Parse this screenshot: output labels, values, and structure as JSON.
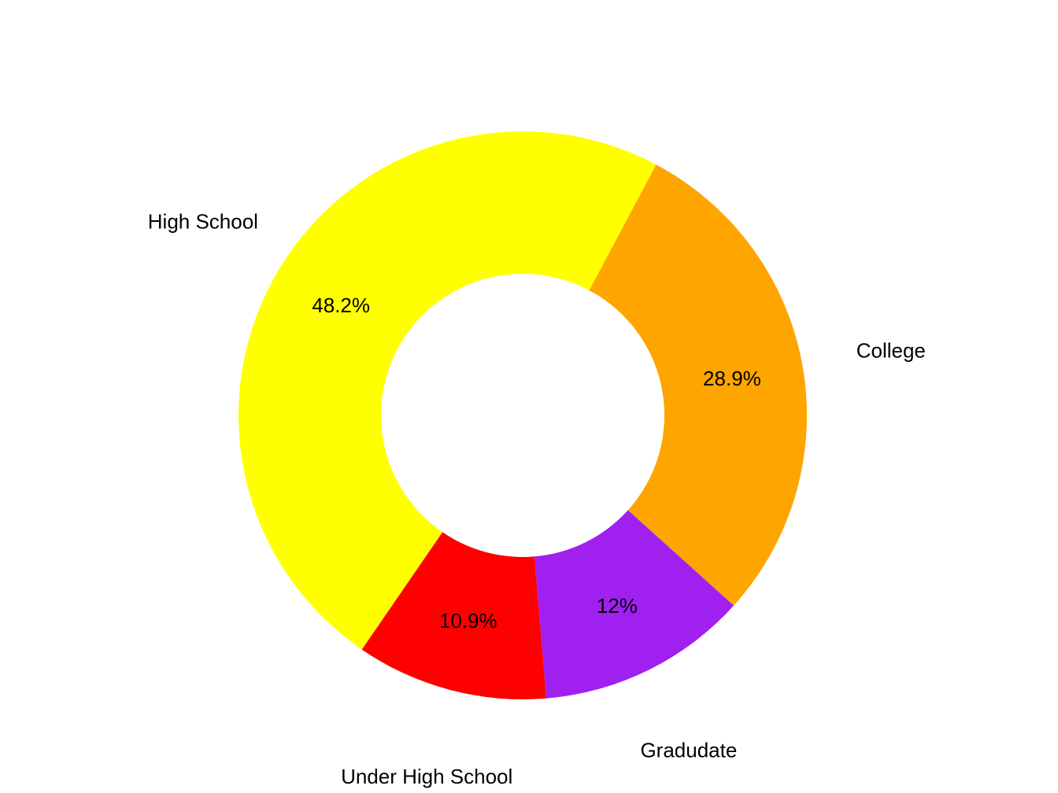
{
  "chart_data": {
    "type": "pie",
    "style": "donut",
    "title": "",
    "slices": [
      {
        "label": "College",
        "value": 28.9,
        "value_label": "28.9%",
        "color": "#FFA500"
      },
      {
        "label": "Gradudate",
        "value": 12.0,
        "value_label": "12%",
        "color": "#A020F0"
      },
      {
        "label": "Under High School",
        "value": 10.9,
        "value_label": "10.9%",
        "color": "#FF0000"
      },
      {
        "label": "High School",
        "value": 48.2,
        "value_label": "48.2%",
        "color": "#FFFF00"
      }
    ],
    "legend": "none"
  }
}
